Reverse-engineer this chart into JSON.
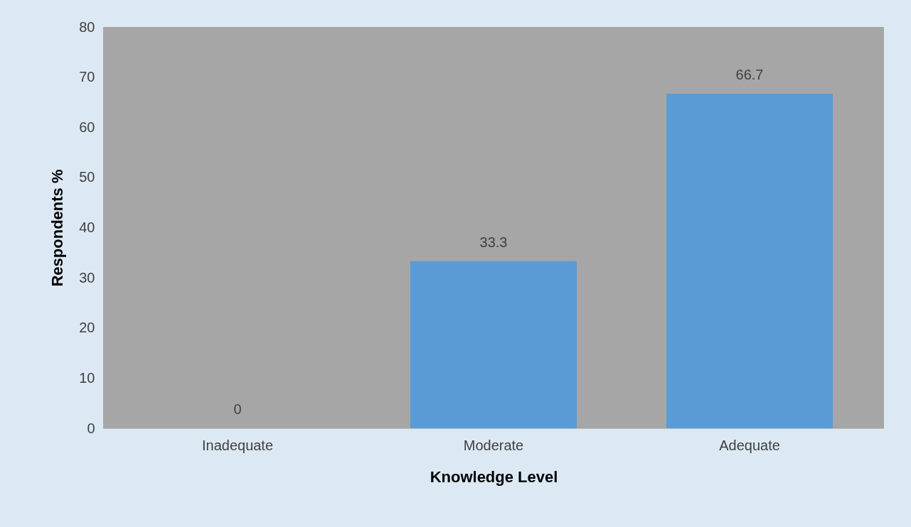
{
  "chart_data": {
    "type": "bar",
    "categories": [
      "Inadequate",
      "Moderate",
      "Adequate"
    ],
    "values": [
      0,
      33.3,
      66.7
    ],
    "color": "#5b9bd5",
    "xlabel": "Knowledge Level",
    "ylabel": "Respondents %",
    "ylim": [
      0,
      80
    ],
    "yticks": [
      0,
      10,
      20,
      30,
      40,
      50,
      60,
      70,
      80
    ],
    "data_labels": true
  }
}
